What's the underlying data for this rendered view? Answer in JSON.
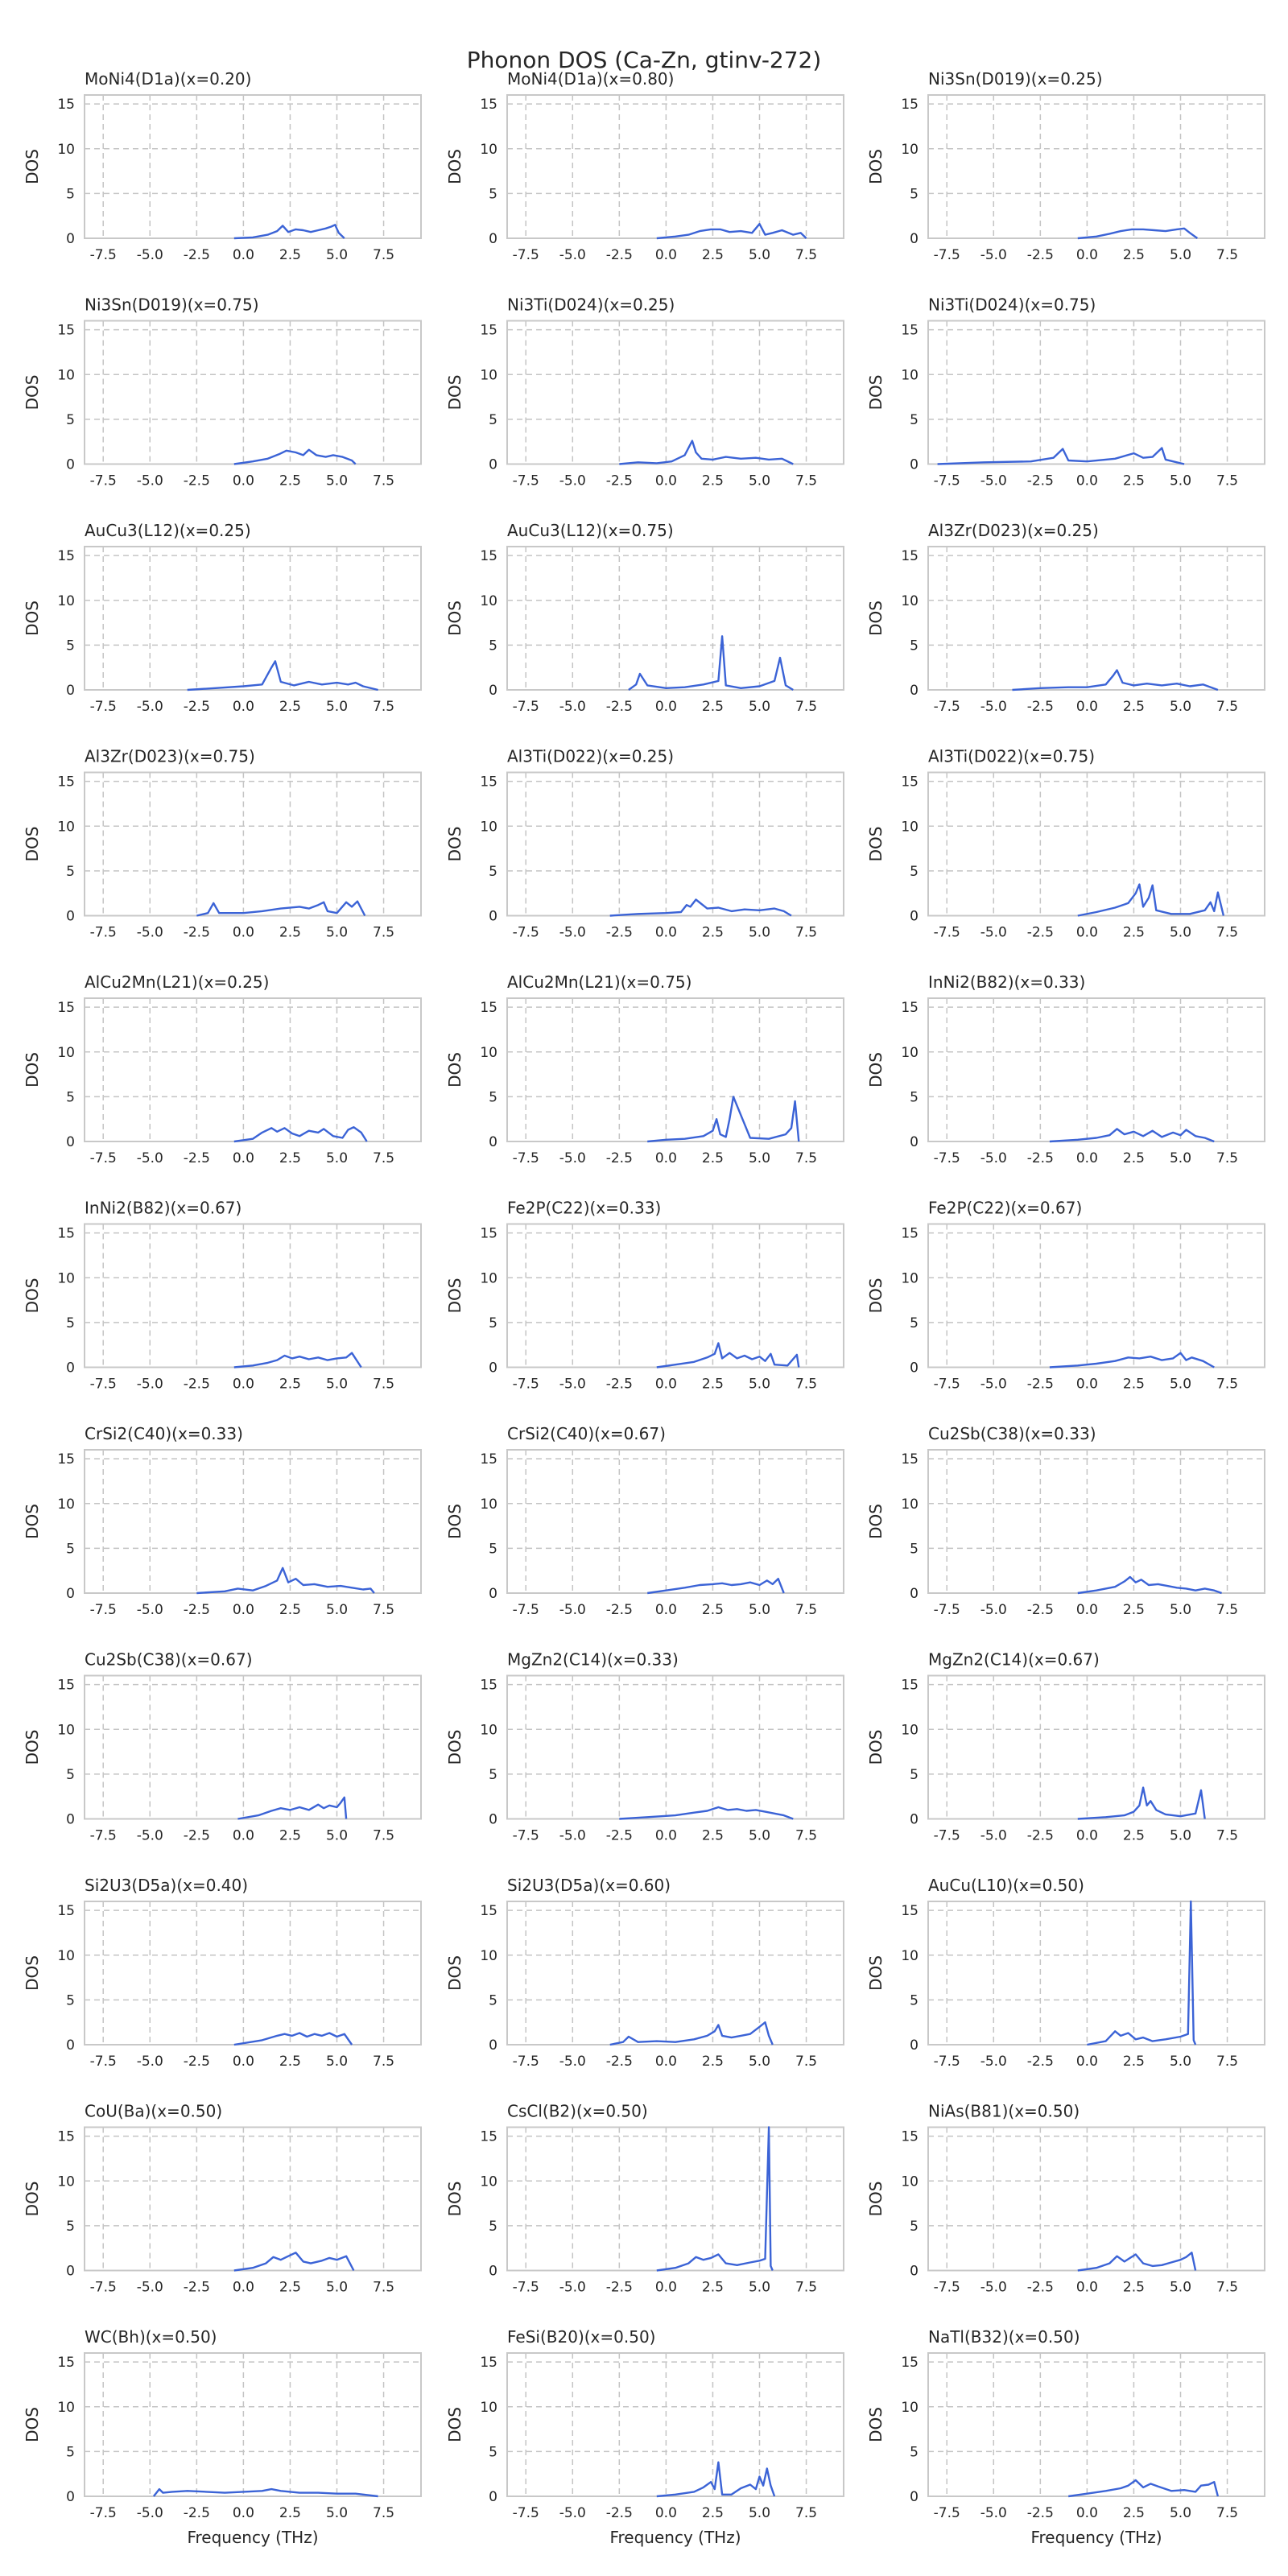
{
  "figure": {
    "title": "Phonon DOS (Ca-Zn, gtinv-272)",
    "colors": {
      "line": "#3b63d6",
      "grid": "#c4c4c4",
      "axes": "#c8c8c8",
      "text": "#262626"
    }
  },
  "chart_data": {
    "type": "line",
    "shared": {
      "xlabel": "Frequency (THz)",
      "ylabel": "DOS",
      "xlim": [
        -8.5,
        9.5
      ],
      "ylim": [
        0,
        16
      ],
      "xticks": [
        "-7.5",
        "-5.0",
        "-2.5",
        "0.0",
        "2.5",
        "5.0",
        "7.5"
      ],
      "yticks": [
        "0",
        "5",
        "10",
        "15"
      ],
      "grid": true,
      "xlabel_shown_on_bottom_row_only": true
    },
    "panels": [
      {
        "title": "MoNi4(D1a)(x=0.20)",
        "x": [
          -0.5,
          0.5,
          1.3,
          1.8,
          2.1,
          2.4,
          2.8,
          3.2,
          3.6,
          4.0,
          4.4,
          4.7,
          4.9,
          5.1,
          5.4
        ],
        "y": [
          0,
          0.1,
          0.4,
          0.8,
          1.4,
          0.7,
          1.0,
          0.9,
          0.7,
          0.9,
          1.1,
          1.3,
          1.5,
          0.6,
          0
        ]
      },
      {
        "title": "MoNi4(D1a)(x=0.80)",
        "x": [
          -0.5,
          0.5,
          1.2,
          1.8,
          2.4,
          2.9,
          3.4,
          4.0,
          4.6,
          5.0,
          5.3,
          5.7,
          6.2,
          6.8,
          7.2,
          7.5
        ],
        "y": [
          0,
          0.2,
          0.4,
          0.8,
          1.0,
          1.0,
          0.7,
          0.8,
          0.6,
          1.6,
          0.4,
          0.6,
          0.9,
          0.4,
          0.6,
          0
        ]
      },
      {
        "title": "Ni3Sn(D019)(x=0.25)",
        "x": [
          -0.5,
          0.5,
          1.2,
          1.8,
          2.4,
          3.0,
          3.6,
          4.2,
          4.8,
          5.2,
          5.5,
          5.9
        ],
        "y": [
          0,
          0.2,
          0.5,
          0.8,
          1.0,
          1.0,
          0.9,
          0.8,
          1.0,
          1.1,
          0.6,
          0
        ]
      },
      {
        "title": "Ni3Sn(D019)(x=0.75)",
        "x": [
          -0.5,
          0.5,
          1.3,
          1.9,
          2.3,
          2.8,
          3.2,
          3.5,
          3.9,
          4.4,
          4.8,
          5.3,
          5.8,
          6.0
        ],
        "y": [
          0,
          0.3,
          0.6,
          1.1,
          1.5,
          1.3,
          1.0,
          1.6,
          1.0,
          0.8,
          1.0,
          0.8,
          0.4,
          0
        ]
      },
      {
        "title": "Ni3Ti(D024)(x=0.25)",
        "x": [
          -2.5,
          -1.5,
          -0.5,
          0.3,
          1.0,
          1.4,
          1.6,
          1.9,
          2.5,
          3.2,
          4.0,
          4.8,
          5.5,
          6.2,
          6.8
        ],
        "y": [
          0,
          0.2,
          0.1,
          0.3,
          1.0,
          2.6,
          1.3,
          0.6,
          0.5,
          0.8,
          0.6,
          0.7,
          0.5,
          0.6,
          0
        ]
      },
      {
        "title": "Ni3Ti(D024)(x=0.75)",
        "x": [
          -8.0,
          -5.5,
          -3.0,
          -1.8,
          -1.3,
          -1.0,
          0.0,
          1.5,
          2.5,
          3.0,
          3.5,
          4.0,
          4.2,
          4.6,
          5.2
        ],
        "y": [
          0,
          0.2,
          0.3,
          0.7,
          1.7,
          0.4,
          0.3,
          0.6,
          1.2,
          0.7,
          0.8,
          1.8,
          0.5,
          0.3,
          0
        ]
      },
      {
        "title": "AuCu3(L12)(x=0.25)",
        "x": [
          -3.0,
          -1.5,
          0.0,
          1.0,
          1.5,
          1.7,
          2.0,
          2.7,
          3.5,
          4.2,
          5.0,
          5.6,
          6.0,
          6.4,
          7.2
        ],
        "y": [
          0,
          0.2,
          0.4,
          0.6,
          2.5,
          3.2,
          0.9,
          0.5,
          0.9,
          0.6,
          0.8,
          0.6,
          0.8,
          0.4,
          0
        ]
      },
      {
        "title": "AuCu3(L12)(x=0.75)",
        "x": [
          -2.0,
          -1.6,
          -1.4,
          -1.0,
          0.0,
          1.0,
          2.0,
          2.8,
          3.0,
          3.2,
          4.0,
          5.0,
          5.8,
          6.1,
          6.4,
          6.8
        ],
        "y": [
          0,
          0.6,
          1.8,
          0.5,
          0.2,
          0.3,
          0.6,
          1.0,
          6.0,
          0.5,
          0.2,
          0.4,
          1.0,
          3.6,
          0.5,
          0
        ]
      },
      {
        "title": "Al3Zr(D023)(x=0.25)",
        "x": [
          -4.0,
          -2.5,
          -1.0,
          0.0,
          1.0,
          1.4,
          1.6,
          1.9,
          2.5,
          3.2,
          4.0,
          4.8,
          5.5,
          6.2,
          7.0
        ],
        "y": [
          0,
          0.2,
          0.3,
          0.3,
          0.6,
          1.6,
          2.2,
          0.8,
          0.5,
          0.7,
          0.5,
          0.7,
          0.4,
          0.6,
          0
        ]
      },
      {
        "title": "Al3Zr(D023)(x=0.75)",
        "x": [
          -2.5,
          -1.9,
          -1.6,
          -1.3,
          0.0,
          1.0,
          2.0,
          3.0,
          3.5,
          4.0,
          4.3,
          4.5,
          5.0,
          5.5,
          5.8,
          6.1,
          6.5
        ],
        "y": [
          0,
          0.3,
          1.4,
          0.3,
          0.3,
          0.5,
          0.8,
          1.0,
          0.8,
          1.2,
          1.5,
          0.5,
          0.3,
          1.5,
          1.0,
          1.6,
          0
        ]
      },
      {
        "title": "Al3Ti(D022)(x=0.25)",
        "x": [
          -3.0,
          -1.5,
          0.0,
          0.8,
          1.1,
          1.3,
          1.6,
          2.2,
          2.8,
          3.5,
          4.2,
          5.0,
          5.8,
          6.3,
          6.7
        ],
        "y": [
          0,
          0.2,
          0.3,
          0.4,
          1.2,
          1.0,
          1.8,
          0.8,
          0.9,
          0.5,
          0.7,
          0.6,
          0.8,
          0.5,
          0
        ]
      },
      {
        "title": "Al3Ti(D022)(x=0.75)",
        "x": [
          -0.5,
          0.5,
          1.5,
          2.2,
          2.6,
          2.8,
          3.0,
          3.3,
          3.5,
          3.7,
          4.5,
          5.5,
          6.3,
          6.6,
          6.8,
          7.0,
          7.3
        ],
        "y": [
          0,
          0.4,
          0.9,
          1.4,
          2.5,
          3.5,
          1.0,
          2.0,
          3.4,
          0.6,
          0.2,
          0.2,
          0.6,
          1.5,
          0.5,
          2.6,
          0
        ]
      },
      {
        "title": "AlCu2Mn(L21)(x=0.25)",
        "x": [
          -0.5,
          0.5,
          1.0,
          1.5,
          1.8,
          2.2,
          2.6,
          3.0,
          3.5,
          4.0,
          4.3,
          4.8,
          5.3,
          5.6,
          5.9,
          6.3,
          6.6
        ],
        "y": [
          0,
          0.3,
          1.0,
          1.5,
          1.1,
          1.5,
          0.9,
          0.6,
          1.2,
          1.0,
          1.4,
          0.6,
          0.4,
          1.3,
          1.6,
          1.0,
          0
        ]
      },
      {
        "title": "AlCu2Mn(L21)(x=0.75)",
        "x": [
          -1.0,
          0.0,
          1.0,
          2.0,
          2.5,
          2.7,
          2.9,
          3.2,
          3.4,
          3.6,
          4.5,
          5.5,
          6.4,
          6.7,
          6.9,
          7.1
        ],
        "y": [
          0,
          0.2,
          0.3,
          0.6,
          1.2,
          2.5,
          0.8,
          0.5,
          2.5,
          5.0,
          0.4,
          0.3,
          0.8,
          1.5,
          4.5,
          0
        ]
      },
      {
        "title": "InNi2(B82)(x=0.33)",
        "x": [
          -2.0,
          -0.5,
          0.5,
          1.2,
          1.6,
          2.0,
          2.5,
          3.0,
          3.5,
          4.0,
          4.6,
          5.0,
          5.3,
          5.8,
          6.3,
          6.8
        ],
        "y": [
          0,
          0.2,
          0.4,
          0.7,
          1.4,
          0.8,
          1.1,
          0.6,
          1.2,
          0.5,
          1.0,
          0.7,
          1.3,
          0.6,
          0.4,
          0
        ]
      },
      {
        "title": "InNi2(B82)(x=0.67)",
        "x": [
          -0.5,
          0.5,
          1.3,
          1.8,
          2.2,
          2.6,
          3.0,
          3.5,
          4.0,
          4.5,
          5.0,
          5.5,
          5.8,
          6.3
        ],
        "y": [
          0,
          0.2,
          0.5,
          0.8,
          1.3,
          1.0,
          1.2,
          0.9,
          1.1,
          0.8,
          1.0,
          1.1,
          1.6,
          0
        ]
      },
      {
        "title": "Fe2P(C22)(x=0.33)",
        "x": [
          -0.5,
          0.5,
          1.5,
          2.2,
          2.6,
          2.8,
          3.0,
          3.4,
          3.8,
          4.2,
          4.6,
          5.0,
          5.3,
          5.6,
          5.8,
          6.5,
          7.0,
          7.1
        ],
        "y": [
          0,
          0.3,
          0.6,
          1.1,
          1.5,
          2.7,
          1.0,
          1.6,
          1.0,
          1.3,
          0.9,
          1.2,
          0.7,
          1.5,
          0.3,
          0.2,
          1.4,
          0
        ]
      },
      {
        "title": "Fe2P(C22)(x=0.67)",
        "x": [
          -2.0,
          -0.5,
          0.5,
          1.5,
          2.2,
          2.8,
          3.4,
          4.0,
          4.6,
          5.0,
          5.3,
          5.6,
          6.2,
          6.8
        ],
        "y": [
          0,
          0.2,
          0.4,
          0.7,
          1.1,
          1.0,
          1.2,
          0.8,
          1.0,
          1.6,
          0.8,
          1.1,
          0.7,
          0
        ]
      },
      {
        "title": "CrSi2(C40)(x=0.33)",
        "x": [
          -2.5,
          -1.0,
          -0.3,
          0.5,
          1.2,
          1.8,
          2.1,
          2.4,
          2.8,
          3.2,
          3.8,
          4.5,
          5.2,
          5.8,
          6.4,
          6.8,
          7.0
        ],
        "y": [
          0,
          0.2,
          0.5,
          0.3,
          0.8,
          1.4,
          2.8,
          1.2,
          1.6,
          0.9,
          1.0,
          0.7,
          0.8,
          0.6,
          0.4,
          0.5,
          0
        ]
      },
      {
        "title": "CrSi2(C40)(x=0.67)",
        "x": [
          -1.0,
          0.0,
          1.0,
          1.8,
          2.5,
          3.0,
          3.5,
          4.0,
          4.5,
          5.0,
          5.4,
          5.7,
          6.0,
          6.3
        ],
        "y": [
          0,
          0.3,
          0.6,
          0.9,
          1.0,
          1.1,
          0.9,
          1.0,
          1.2,
          0.9,
          1.4,
          1.0,
          1.6,
          0
        ]
      },
      {
        "title": "Cu2Sb(C38)(x=0.33)",
        "x": [
          -0.5,
          0.5,
          1.5,
          2.0,
          2.3,
          2.6,
          2.9,
          3.3,
          3.8,
          4.3,
          4.8,
          5.3,
          5.8,
          6.3,
          6.8,
          7.2
        ],
        "y": [
          0,
          0.3,
          0.7,
          1.3,
          1.8,
          1.2,
          1.5,
          0.9,
          1.0,
          0.8,
          0.6,
          0.5,
          0.3,
          0.5,
          0.3,
          0
        ]
      },
      {
        "title": "Cu2Sb(C38)(x=0.67)",
        "x": [
          -0.3,
          0.8,
          1.5,
          2.0,
          2.5,
          3.0,
          3.5,
          4.0,
          4.3,
          4.6,
          5.0,
          5.2,
          5.4,
          5.5
        ],
        "y": [
          0,
          0.4,
          0.9,
          1.2,
          1.0,
          1.3,
          1.0,
          1.6,
          1.2,
          1.5,
          1.3,
          1.8,
          2.4,
          0
        ]
      },
      {
        "title": "MgZn2(C14)(x=0.33)",
        "x": [
          -2.5,
          -1.0,
          0.5,
          1.5,
          2.2,
          2.8,
          3.3,
          3.8,
          4.3,
          4.8,
          5.3,
          5.8,
          6.3,
          6.8
        ],
        "y": [
          0,
          0.2,
          0.4,
          0.7,
          0.9,
          1.3,
          1.0,
          1.1,
          0.9,
          1.0,
          0.8,
          0.6,
          0.4,
          0
        ]
      },
      {
        "title": "MgZn2(C14)(x=0.67)",
        "x": [
          -0.5,
          1.0,
          2.0,
          2.5,
          2.8,
          3.0,
          3.2,
          3.4,
          3.7,
          4.2,
          5.0,
          5.8,
          6.1,
          6.3
        ],
        "y": [
          0,
          0.2,
          0.4,
          0.8,
          1.5,
          3.5,
          1.5,
          2.0,
          1.0,
          0.5,
          0.3,
          0.6,
          3.2,
          0
        ]
      },
      {
        "title": "Si2U3(D5a)(x=0.40)",
        "x": [
          -0.5,
          1.0,
          1.8,
          2.2,
          2.6,
          3.0,
          3.4,
          3.8,
          4.2,
          4.6,
          5.0,
          5.4,
          5.8
        ],
        "y": [
          0,
          0.5,
          1.0,
          1.2,
          1.0,
          1.3,
          0.9,
          1.2,
          1.0,
          1.3,
          0.9,
          1.2,
          0
        ]
      },
      {
        "title": "Si2U3(D5a)(x=0.60)",
        "x": [
          -3.0,
          -2.3,
          -2.0,
          -1.5,
          -0.5,
          0.5,
          1.5,
          2.2,
          2.6,
          2.8,
          3.0,
          3.5,
          4.0,
          4.5,
          5.0,
          5.3,
          5.5,
          5.7
        ],
        "y": [
          0,
          0.3,
          0.9,
          0.3,
          0.4,
          0.3,
          0.6,
          1.0,
          1.5,
          2.2,
          1.0,
          0.8,
          1.0,
          1.2,
          2.0,
          2.5,
          1.0,
          0
        ]
      },
      {
        "title": "AuCu(L10)(x=0.50)",
        "x": [
          0.0,
          1.0,
          1.5,
          1.8,
          2.2,
          2.6,
          3.0,
          3.5,
          4.2,
          5.0,
          5.4,
          5.55,
          5.7,
          5.8
        ],
        "y": [
          0,
          0.4,
          1.5,
          1.0,
          1.3,
          0.6,
          0.8,
          0.4,
          0.6,
          0.9,
          1.2,
          16,
          0.5,
          0
        ]
      },
      {
        "title": "CoU(Ba)(x=0.50)",
        "x": [
          -0.5,
          0.5,
          1.2,
          1.6,
          2.0,
          2.4,
          2.8,
          3.2,
          3.6,
          4.2,
          4.6,
          5.0,
          5.5,
          5.9
        ],
        "y": [
          0,
          0.3,
          0.8,
          1.5,
          1.2,
          1.6,
          2.0,
          1.0,
          0.8,
          1.1,
          1.4,
          1.2,
          1.6,
          0
        ]
      },
      {
        "title": "CsCl(B2)(x=0.50)",
        "x": [
          -0.5,
          0.5,
          1.2,
          1.6,
          2.0,
          2.4,
          2.8,
          3.2,
          3.8,
          4.5,
          5.0,
          5.3,
          5.5,
          5.6,
          5.7
        ],
        "y": [
          0,
          0.3,
          0.8,
          1.5,
          1.2,
          1.4,
          1.8,
          0.8,
          0.6,
          0.9,
          1.1,
          1.3,
          16,
          0.5,
          0
        ]
      },
      {
        "title": "NiAs(B81)(x=0.50)",
        "x": [
          -0.5,
          0.5,
          1.2,
          1.6,
          2.0,
          2.3,
          2.6,
          3.0,
          3.5,
          4.0,
          4.5,
          5.0,
          5.3,
          5.6,
          5.8
        ],
        "y": [
          0,
          0.3,
          0.8,
          1.6,
          1.0,
          1.4,
          1.8,
          0.8,
          0.5,
          0.6,
          0.9,
          1.2,
          1.5,
          2.0,
          0
        ]
      },
      {
        "title": "WC(Bh)(x=0.50)",
        "x": [
          -4.8,
          -4.5,
          -4.3,
          -3.8,
          -3.0,
          -2.0,
          -1.0,
          0.0,
          1.0,
          1.5,
          2.0,
          3.0,
          4.0,
          5.0,
          6.0,
          7.2
        ],
        "y": [
          0,
          0.8,
          0.4,
          0.5,
          0.6,
          0.5,
          0.4,
          0.5,
          0.6,
          0.8,
          0.6,
          0.4,
          0.4,
          0.3,
          0.3,
          0
        ]
      },
      {
        "title": "FeSi(B20)(x=0.50)",
        "x": [
          -0.5,
          0.5,
          1.5,
          2.0,
          2.4,
          2.6,
          2.8,
          3.0,
          3.5,
          4.0,
          4.5,
          4.8,
          5.0,
          5.2,
          5.4,
          5.6,
          5.8
        ],
        "y": [
          0,
          0.2,
          0.5,
          1.0,
          1.6,
          0.8,
          3.8,
          0.2,
          0.2,
          0.9,
          1.3,
          0.8,
          2.2,
          1.2,
          3.1,
          1.2,
          0
        ]
      },
      {
        "title": "NaTl(B32)(x=0.50)",
        "x": [
          -1.0,
          0.0,
          1.0,
          1.8,
          2.2,
          2.6,
          3.0,
          3.4,
          3.8,
          4.5,
          5.2,
          5.8,
          6.1,
          6.5,
          6.8,
          7.0
        ],
        "y": [
          0,
          0.3,
          0.6,
          0.9,
          1.2,
          1.8,
          1.0,
          1.4,
          1.1,
          0.6,
          0.7,
          0.5,
          1.2,
          1.3,
          1.6,
          0
        ]
      }
    ]
  }
}
